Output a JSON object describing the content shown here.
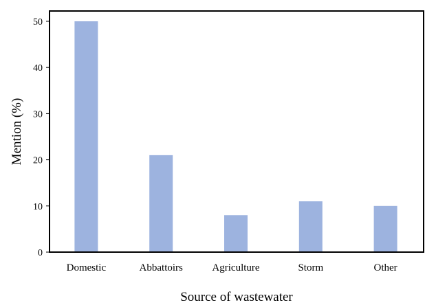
{
  "chart_data": {
    "type": "bar",
    "title": "",
    "xlabel": "Source of wastewater",
    "ylabel": "Mention (%)",
    "categories": [
      "Domestic",
      "Abbattoirs",
      "Agriculture",
      "Storm",
      "Other"
    ],
    "series": [
      {
        "values": [
          50,
          21,
          8,
          11,
          10
        ]
      }
    ],
    "ylim": [
      0,
      50
    ],
    "yticks": [
      0,
      10,
      20,
      30,
      40,
      50
    ],
    "grid": false,
    "legend": "none",
    "bar_color": "#9DB3DF"
  }
}
